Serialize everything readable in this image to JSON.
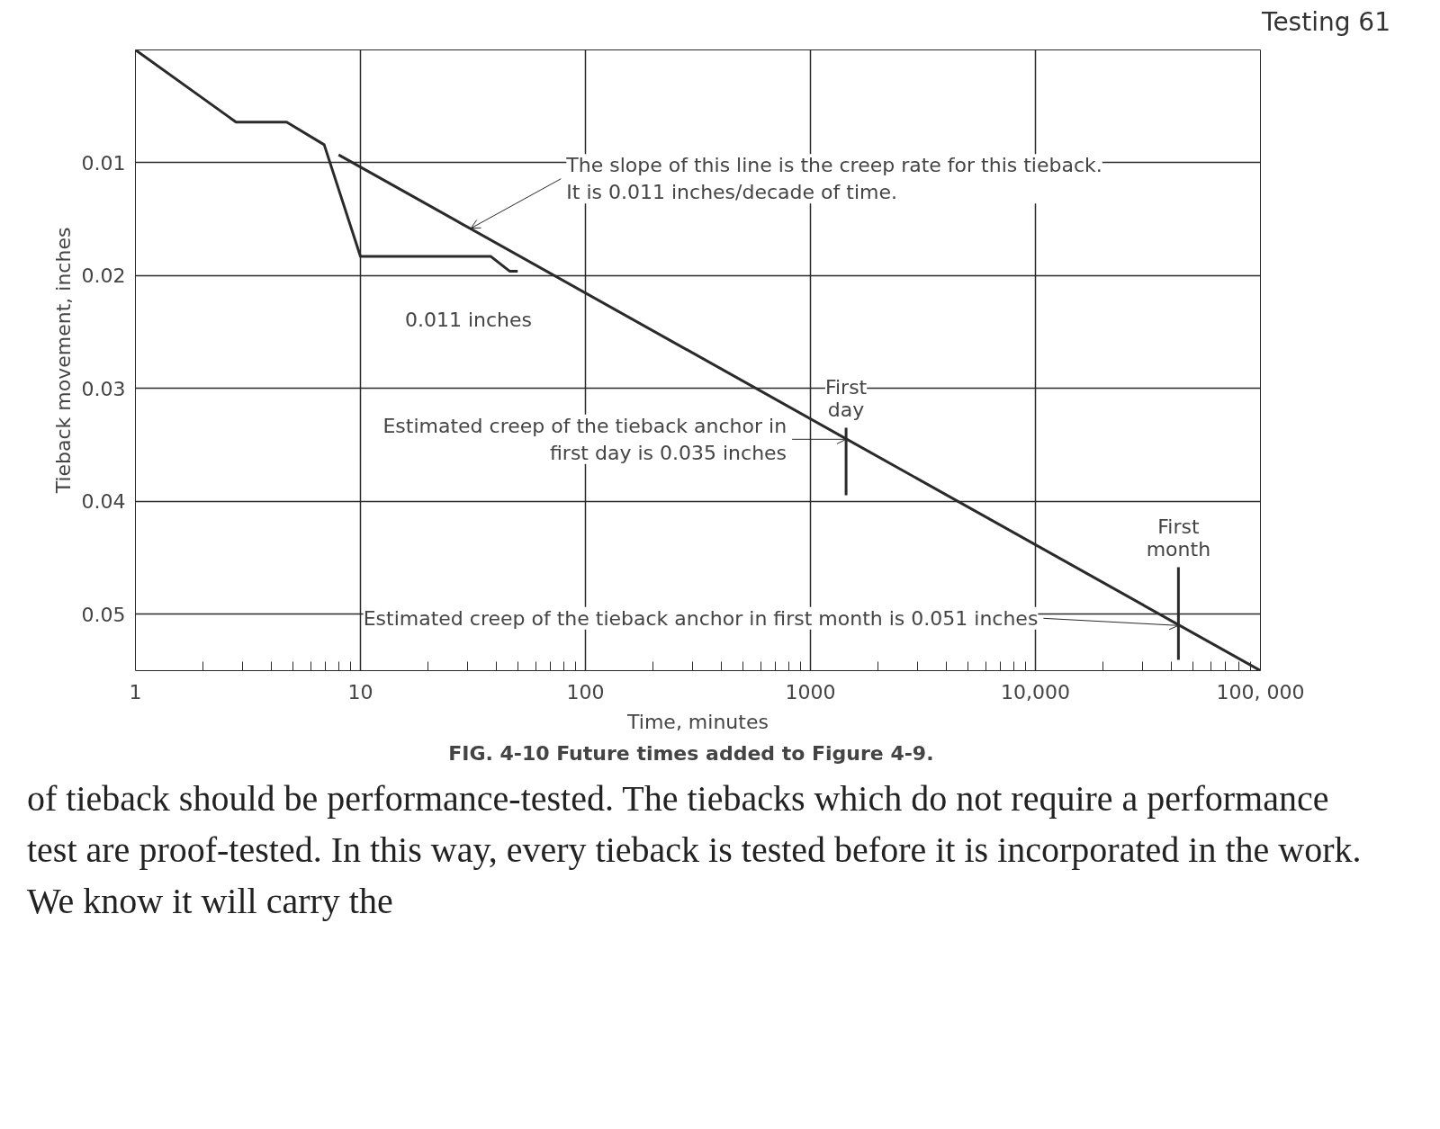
{
  "chart_data": {
    "type": "line",
    "title": "FIG. 4-10   Future times added to Figure 4-9.",
    "xlabel": "Time, minutes",
    "ylabel": "Tieback movement, inches",
    "log": "x",
    "xlim": [
      1,
      100000
    ],
    "ylim": [
      0.055,
      0
    ],
    "xticks": [
      1,
      10,
      100,
      1000,
      {
        "value": 10000,
        "label": "10,000"
      },
      {
        "value": 100000,
        "label": "100, 000"
      }
    ],
    "yticks": [
      0.01,
      0.02,
      0.03,
      0.04,
      0.05
    ],
    "grid": true,
    "marker": "none",
    "line_style": "solid",
    "color": "#2a2a2a",
    "series": [
      {
        "x": [
          1,
          2.8,
          4.7,
          6.9,
          10,
          38,
          46,
          50
        ],
        "values": [
          0,
          0.0064,
          0.0064,
          0.0084,
          0.0183,
          0.0183,
          0.0196,
          0.0196
        ]
      },
      {
        "x": [
          8,
          100000
        ],
        "values": [
          0.0093,
          0.055
        ]
      }
    ],
    "ref_lines": [
      {
        "axis": "x",
        "value": 1440,
        "label": "First\nday"
      },
      {
        "axis": "x",
        "value": 43200,
        "label": "First\nmonth"
      }
    ],
    "annotations": [
      "Testing 61",
      {
        "text": "The slope of this line is the creep rate for this tieback.\nIt is 0.011 inches/decade of time.",
        "x": 31,
        "y": 0.0158
      },
      "0.011 inches",
      {
        "text": "Estimated creep of the tieback anchor in\nfirst day is 0.035 inches",
        "x": 1440,
        "y": 0.0345
      },
      {
        "text": "Estimated creep of the tieback anchor in first month is 0.051 inches",
        "x": 43200,
        "y": 0.051
      },
      "of tieback should be performance-tested. The tiebacks which do not require a performance test are proof-tested. In this way, every tieback is tested before it is incorporated in the work. We know it will carry the"
    ]
  }
}
